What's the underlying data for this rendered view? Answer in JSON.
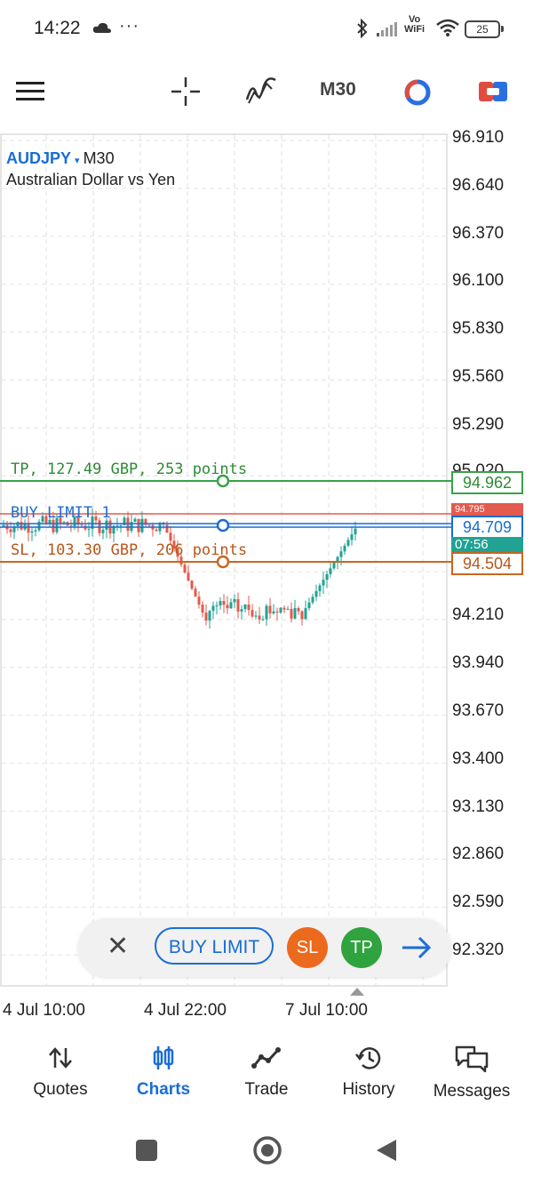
{
  "status_bar": {
    "time": "14:22",
    "more": "···",
    "network_label": "Vo\nWiFi",
    "battery": "25"
  },
  "toolbar": {
    "timeframe": "M30",
    "icons": [
      "menu-icon",
      "crosshair-icon",
      "indicators-icon",
      "objects-icon",
      "trade-icon"
    ]
  },
  "chart": {
    "symbol": "AUDJPY",
    "caret": "▾",
    "timeframe": "M30",
    "description": "Australian Dollar vs Yen",
    "price_scale": [
      "96.910",
      "96.640",
      "96.370",
      "96.100",
      "95.830",
      "95.560",
      "95.290",
      "95.020",
      "94.210",
      "93.940",
      "93.670",
      "93.400",
      "93.130",
      "92.860",
      "92.590",
      "92.320"
    ],
    "time_scale": [
      "4 Jul 10:00",
      "4 Jul 22:00",
      "7 Jul 10:00"
    ],
    "tp_label": "TP, 127.49 GBP, 253 points",
    "buy_label": "BUY LIMIT 1",
    "sl_label": "SL, 103.30 GBP, 206 points",
    "tp_price": "94.962",
    "buy_price": "94.709",
    "sl_price": "94.504",
    "ask_price": "94.795",
    "timer": "07:56",
    "colors": {
      "tp": "#3aa14a",
      "buy": "#1a6dd6",
      "sl": "#c8671f",
      "ask": "#e35a4e",
      "bull": "#22a293",
      "bear": "#e35a4e"
    }
  },
  "order_panel": {
    "close_symbol": "✕",
    "order_type": "BUY LIMIT",
    "sl_button": "SL",
    "tp_button": "TP"
  },
  "bottom_nav": {
    "items": [
      {
        "label": "Quotes",
        "icon": "quotes-icon"
      },
      {
        "label": "Charts",
        "icon": "charts-icon",
        "active": true
      },
      {
        "label": "Trade",
        "icon": "trade-chart-icon"
      },
      {
        "label": "History",
        "icon": "history-icon"
      },
      {
        "label": "Messages",
        "icon": "messages-icon"
      }
    ]
  }
}
